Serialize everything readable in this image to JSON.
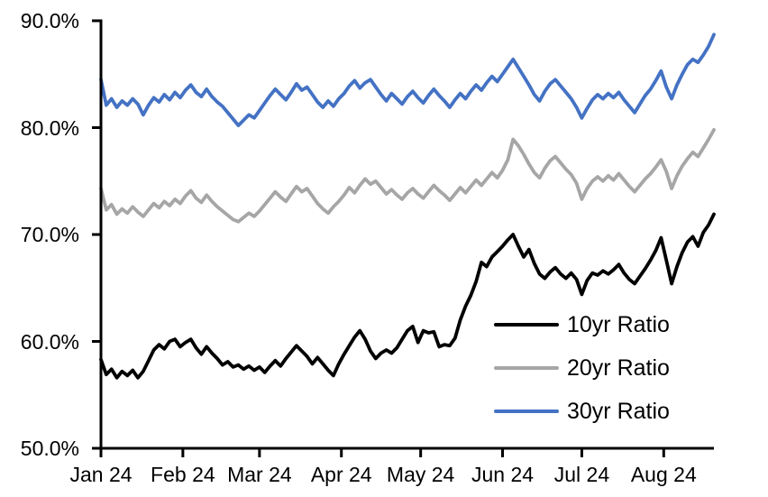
{
  "chart_data": {
    "type": "line",
    "title": "",
    "grid": false,
    "background": "#ffffff",
    "legend_position": "inside-right-bottom",
    "x_axis": {
      "categories": [
        "Jan 24",
        "Feb 24",
        "Mar 24",
        "Apr 24",
        "May 24",
        "Jun 24",
        "Jul 24",
        "Aug 24"
      ],
      "tick_days": [
        0,
        31,
        60,
        91,
        121,
        152,
        182,
        213
      ],
      "total_days": 232
    },
    "y_axis": {
      "min": 50,
      "max": 90,
      "tick_values": [
        90,
        80,
        70,
        60,
        50
      ],
      "tick_labels": [
        "90.0%",
        "80.0%",
        "70.0%",
        "60.0%",
        "50.0%"
      ],
      "unit": "%"
    },
    "sample_interval_days": 2,
    "series": [
      {
        "name": "10yr Ratio",
        "color": "#000000",
        "values": [
          58.3,
          56.9,
          57.4,
          56.6,
          57.2,
          56.8,
          57.3,
          56.6,
          57.2,
          58.2,
          59.2,
          59.7,
          59.3,
          60.0,
          60.2,
          59.5,
          59.9,
          60.2,
          59.4,
          58.8,
          59.5,
          58.9,
          58.4,
          57.8,
          58.1,
          57.6,
          57.8,
          57.4,
          57.7,
          57.3,
          57.6,
          57.1,
          57.7,
          58.2,
          57.7,
          58.4,
          59.0,
          59.6,
          59.1,
          58.6,
          57.9,
          58.5,
          57.9,
          57.3,
          56.8,
          57.9,
          58.8,
          59.6,
          60.4,
          61.0,
          60.2,
          59.1,
          58.4,
          58.9,
          59.2,
          58.9,
          59.4,
          60.2,
          61.0,
          61.4,
          59.9,
          61.0,
          60.8,
          60.9,
          59.5,
          59.7,
          59.6,
          60.3,
          62.0,
          63.3,
          64.3,
          65.6,
          67.4,
          67.0,
          67.9,
          68.4,
          68.9,
          69.5,
          70.0,
          68.9,
          67.9,
          68.6,
          67.3,
          66.3,
          65.9,
          66.5,
          66.9,
          66.3,
          65.9,
          66.4,
          65.8,
          64.4,
          65.7,
          66.4,
          66.2,
          66.6,
          66.3,
          66.7,
          67.2,
          66.4,
          65.8,
          65.4,
          66.1,
          66.8,
          67.6,
          68.5,
          69.7,
          67.6,
          65.4,
          67.0,
          68.3,
          69.3,
          69.8,
          68.9,
          70.2,
          70.9,
          71.9
        ]
      },
      {
        "name": "20yr Ratio",
        "color": "#A6A6A6",
        "values": [
          74.3,
          72.3,
          72.8,
          71.9,
          72.4,
          72.0,
          72.6,
          72.1,
          71.7,
          72.3,
          72.9,
          72.5,
          73.1,
          72.7,
          73.3,
          72.9,
          73.6,
          74.1,
          73.4,
          73.0,
          73.7,
          73.1,
          72.6,
          72.2,
          71.8,
          71.4,
          71.2,
          71.6,
          72.0,
          71.7,
          72.2,
          72.8,
          73.4,
          74.0,
          73.5,
          73.1,
          73.8,
          74.5,
          74.0,
          74.3,
          73.6,
          72.9,
          72.4,
          72.0,
          72.6,
          73.1,
          73.7,
          74.4,
          73.9,
          74.6,
          75.2,
          74.7,
          75.0,
          74.4,
          73.8,
          74.2,
          73.7,
          73.3,
          73.9,
          74.3,
          73.8,
          73.4,
          74.0,
          74.6,
          74.1,
          73.7,
          73.2,
          73.8,
          74.4,
          73.9,
          74.5,
          75.1,
          74.6,
          75.2,
          75.8,
          75.3,
          76.0,
          77.0,
          78.9,
          78.3,
          77.5,
          76.6,
          75.8,
          75.3,
          76.2,
          76.9,
          77.3,
          76.7,
          76.1,
          75.6,
          74.8,
          73.3,
          74.3,
          75.0,
          75.4,
          75.0,
          75.5,
          75.1,
          75.7,
          75.1,
          74.5,
          74.0,
          74.6,
          75.2,
          75.7,
          76.3,
          77.0,
          75.9,
          74.3,
          75.5,
          76.4,
          77.1,
          77.7,
          77.3,
          78.1,
          78.9,
          79.8
        ]
      },
      {
        "name": "30yr Ratio",
        "color": "#4472C4",
        "values": [
          84.5,
          82.1,
          82.7,
          81.9,
          82.5,
          82.1,
          82.7,
          82.2,
          81.2,
          82.1,
          82.8,
          82.4,
          83.1,
          82.6,
          83.3,
          82.8,
          83.5,
          84.0,
          83.3,
          82.9,
          83.6,
          82.9,
          82.4,
          82.0,
          81.4,
          80.8,
          80.2,
          80.7,
          81.2,
          80.9,
          81.6,
          82.3,
          83.0,
          83.6,
          83.1,
          82.6,
          83.3,
          84.1,
          83.5,
          83.8,
          83.1,
          82.4,
          81.9,
          82.5,
          82.0,
          82.7,
          83.2,
          83.9,
          84.4,
          83.7,
          84.2,
          84.5,
          83.8,
          83.1,
          82.5,
          83.2,
          82.7,
          82.2,
          82.9,
          83.4,
          82.8,
          82.3,
          83.0,
          83.6,
          83.0,
          82.5,
          81.9,
          82.6,
          83.2,
          82.7,
          83.4,
          84.0,
          83.5,
          84.2,
          84.8,
          84.3,
          85.0,
          85.7,
          86.4,
          85.6,
          84.8,
          84.0,
          83.1,
          82.5,
          83.4,
          84.1,
          84.5,
          83.9,
          83.3,
          82.7,
          81.9,
          80.9,
          81.8,
          82.6,
          83.1,
          82.7,
          83.2,
          82.8,
          83.3,
          82.6,
          82.0,
          81.4,
          82.2,
          83.0,
          83.6,
          84.4,
          85.3,
          83.8,
          82.7,
          84.0,
          85.0,
          85.9,
          86.4,
          86.1,
          86.8,
          87.6,
          88.7
        ]
      }
    ]
  }
}
